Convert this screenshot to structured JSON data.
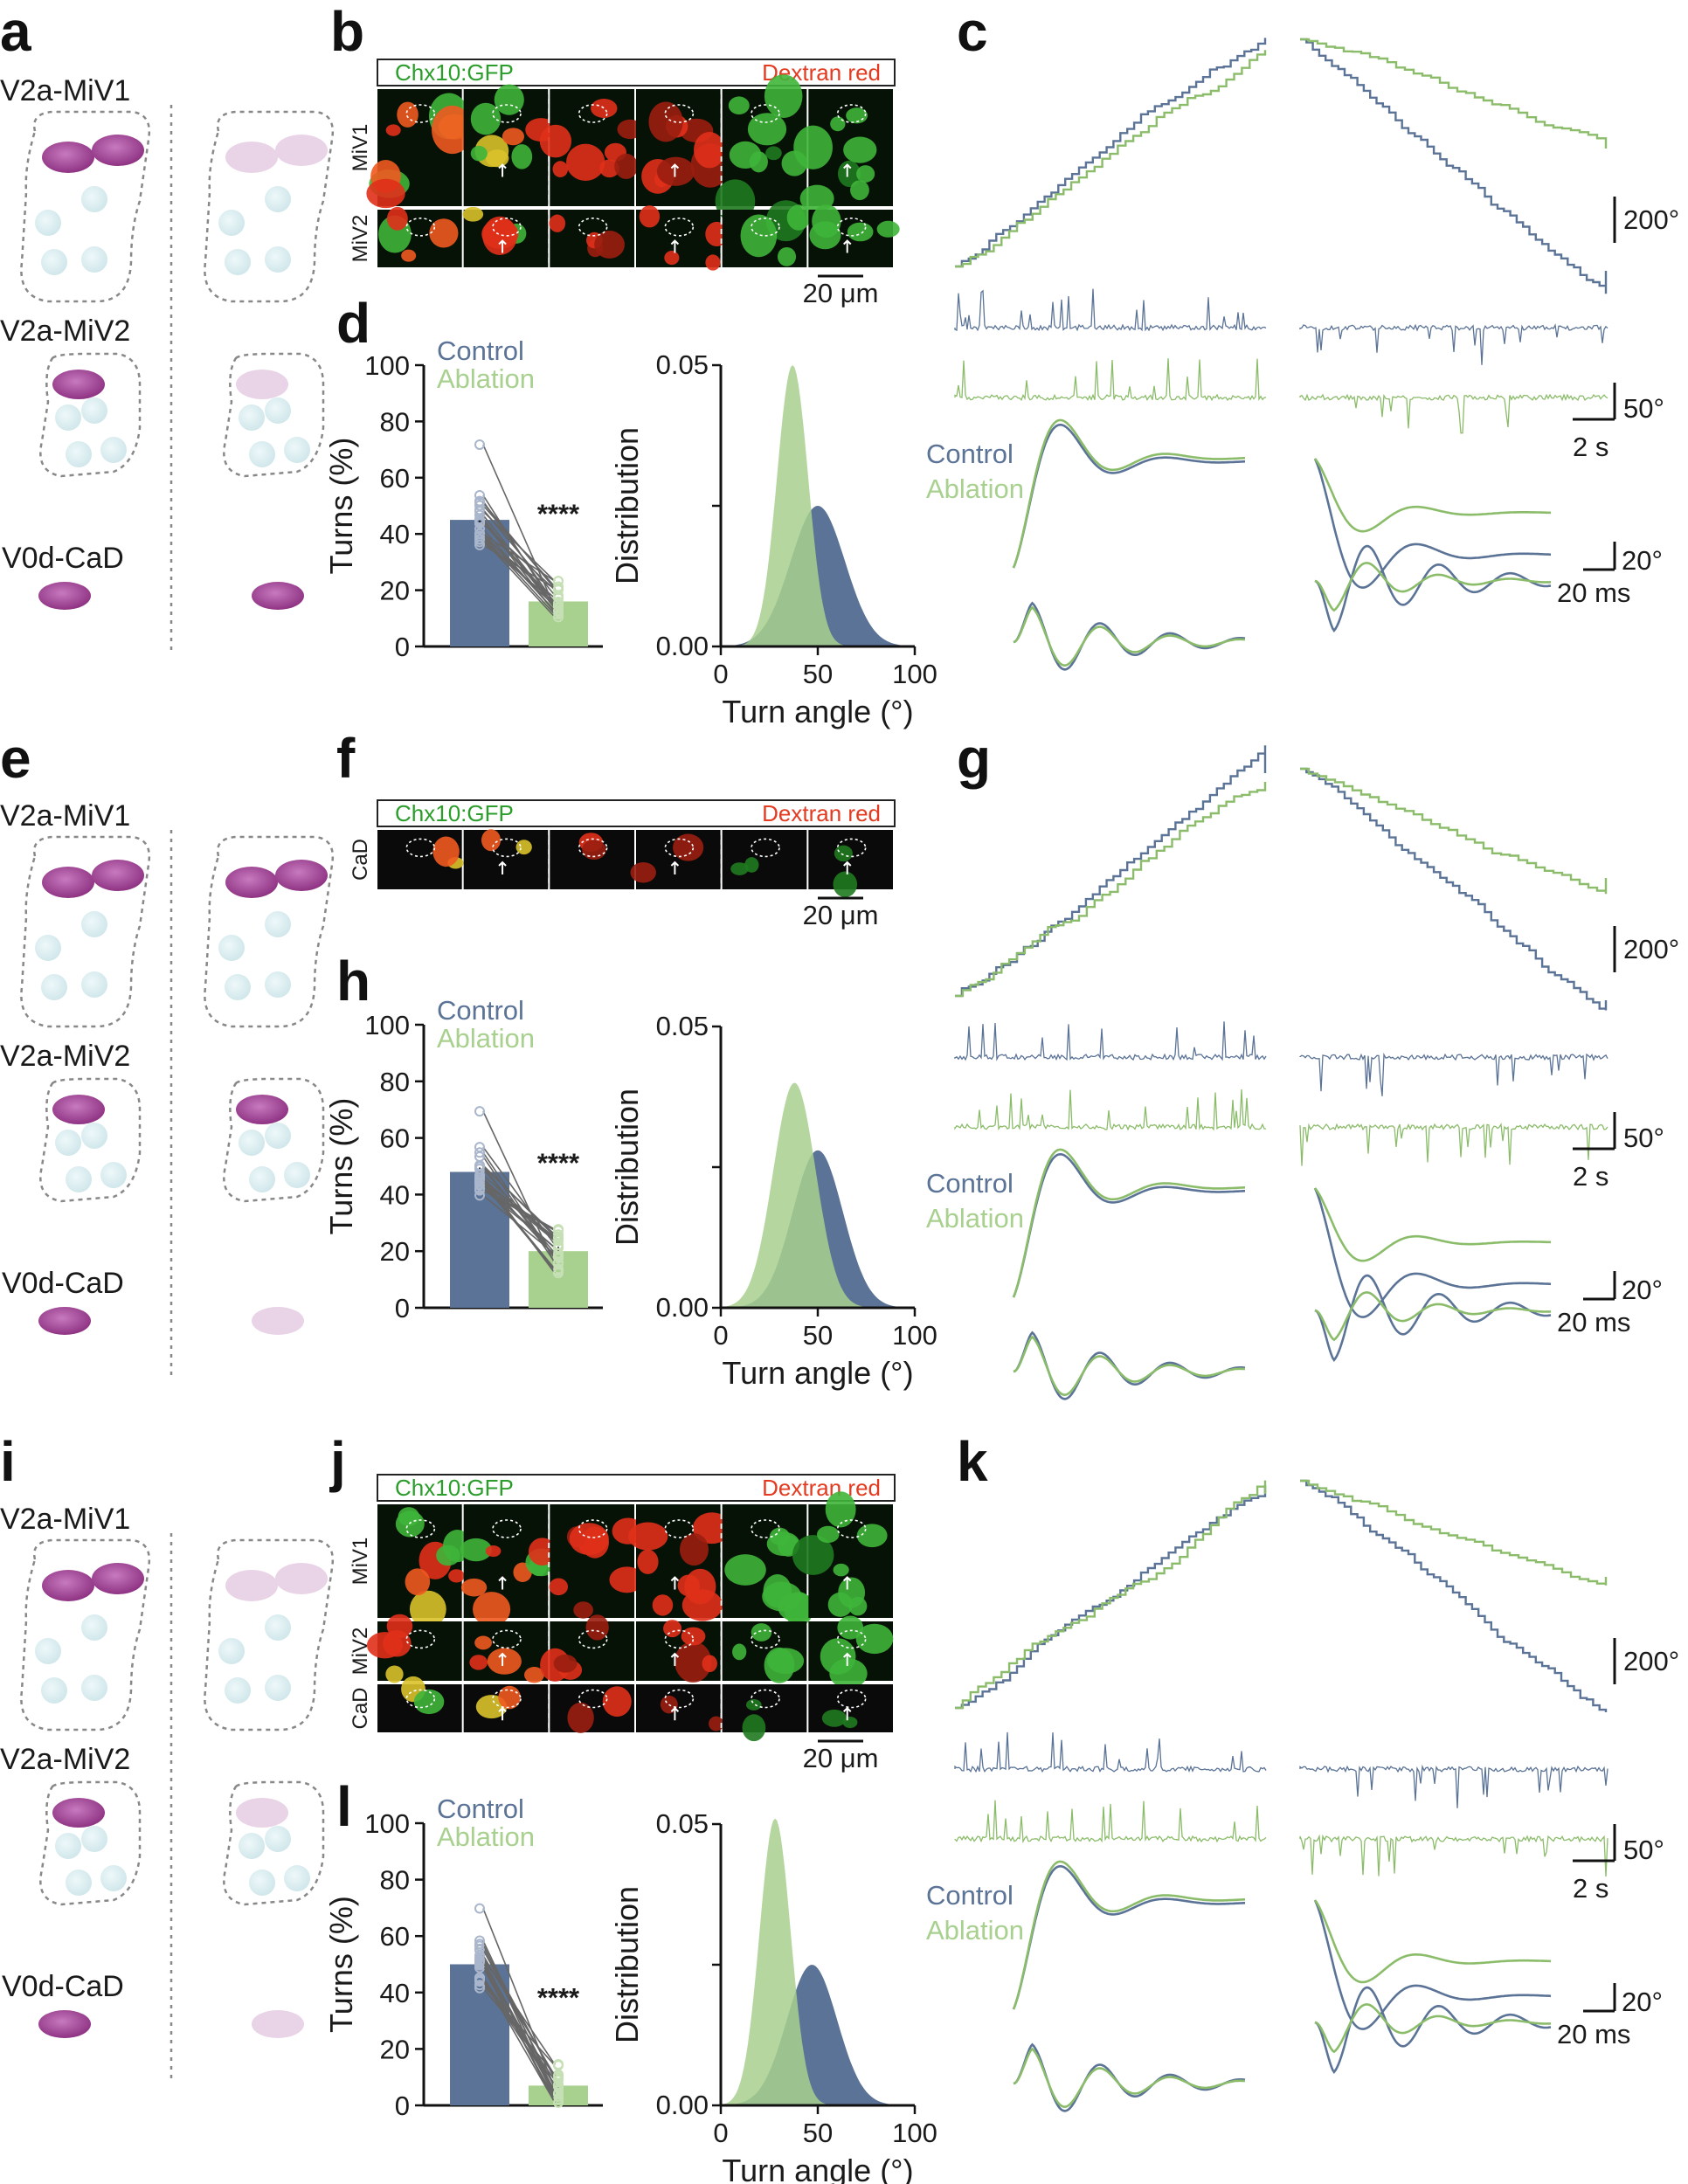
{
  "colors": {
    "control": "#5b7396",
    "ablation": "#8bbc6a",
    "ablation_light": "#a8d08e",
    "magenta": "#8a2d7e",
    "magenta_faint": "#e9d3e6",
    "cyan": "#cfe6ea",
    "gfp_green": "#2a9d2a",
    "dextran_red": "#e33a20"
  },
  "panel_letters": [
    "a",
    "b",
    "c",
    "d",
    "e",
    "f",
    "g",
    "h",
    "i",
    "j",
    "k",
    "l"
  ],
  "schematics": [
    {
      "letter": "a",
      "labels": [
        "V2a-MiV1",
        "V2a-MiV2",
        "V0d-CaD"
      ],
      "left": {
        "miv1": "full",
        "miv2": "full",
        "cad": "full"
      },
      "right": {
        "miv1": "faint",
        "miv2": "faint",
        "cad": "full"
      }
    },
    {
      "letter": "e",
      "labels": [
        "V2a-MiV1",
        "V2a-MiV2",
        "V0d-CaD"
      ],
      "left": {
        "miv1": "full",
        "miv2": "full",
        "cad": "full"
      },
      "right": {
        "miv1": "full",
        "miv2": "full",
        "cad": "faint"
      }
    },
    {
      "letter": "i",
      "labels": [
        "V2a-MiV1",
        "V2a-MiV2",
        "V0d-CaD"
      ],
      "left": {
        "miv1": "full",
        "miv2": "full",
        "cad": "full"
      },
      "right": {
        "miv1": "faint",
        "miv2": "faint",
        "cad": "faint"
      }
    }
  ],
  "micrographs": [
    {
      "letter": "b",
      "header_left": "Chx10:GFP",
      "header_right": "Dextran red",
      "rows": [
        "MiV1",
        "MiV2"
      ],
      "scale": "20 μm"
    },
    {
      "letter": "f",
      "header_left": "Chx10:GFP",
      "header_right": "Dextran red",
      "rows": [
        "CaD"
      ],
      "scale": "20 μm"
    },
    {
      "letter": "j",
      "header_left": "Chx10:GFP",
      "header_right": "Dextran red",
      "rows": [
        "MiV1",
        "MiV2",
        "CaD"
      ],
      "scale": "20 μm"
    }
  ],
  "traces": [
    {
      "letter": "c",
      "scale_angle": "200°",
      "scale_spike": "50°",
      "scale_time": "2 s",
      "scale_fine_angle": "20°",
      "scale_fine_time": "20 ms",
      "legend": [
        "Control",
        "Ablation"
      ]
    },
    {
      "letter": "g",
      "scale_angle": "200°",
      "scale_spike": "50°",
      "scale_time": "2 s",
      "scale_fine_angle": "20°",
      "scale_fine_time": "20 ms",
      "legend": [
        "Control",
        "Ablation"
      ]
    },
    {
      "letter": "k",
      "scale_angle": "200°",
      "scale_spike": "50°",
      "scale_time": "2 s",
      "scale_fine_angle": "20°",
      "scale_fine_time": "20 ms",
      "legend": [
        "Control",
        "Ablation"
      ]
    }
  ],
  "chart_data": [
    {
      "panel": "d",
      "type": "bar",
      "categories": [
        "Control",
        "Ablation"
      ],
      "values": [
        45,
        16
      ],
      "legend": [
        "Control",
        "Ablation"
      ],
      "ylabel": "Turns (%)",
      "ylim": [
        0,
        100
      ],
      "yticks": [
        0,
        20,
        40,
        60,
        80,
        100
      ],
      "significance": "****"
    },
    {
      "panel": "d-dist",
      "type": "area",
      "series": [
        {
          "name": "Control",
          "mean": 50,
          "sd": 14,
          "peak": 0.025
        },
        {
          "name": "Ablation",
          "mean": 37,
          "sd": 8,
          "peak": 0.05
        }
      ],
      "xlabel": "Turn angle (°)",
      "ylabel": "Distribution",
      "xlim": [
        0,
        100
      ],
      "xticks": [
        0,
        50,
        100
      ],
      "ylim": [
        0,
        0.05
      ],
      "yticks": [
        "0.00",
        "0.05"
      ]
    },
    {
      "panel": "h",
      "type": "bar",
      "categories": [
        "Control",
        "Ablation"
      ],
      "values": [
        48,
        20
      ],
      "legend": [
        "Control",
        "Ablation"
      ],
      "ylabel": "Turns (%)",
      "ylim": [
        0,
        100
      ],
      "yticks": [
        0,
        20,
        40,
        60,
        80,
        100
      ],
      "significance": "****"
    },
    {
      "panel": "h-dist",
      "type": "area",
      "series": [
        {
          "name": "Control",
          "mean": 50,
          "sd": 13,
          "peak": 0.028
        },
        {
          "name": "Ablation",
          "mean": 38,
          "sd": 11,
          "peak": 0.04
        }
      ],
      "xlabel": "Turn angle (°)",
      "ylabel": "Distribution",
      "xlim": [
        0,
        100
      ],
      "xticks": [
        0,
        50,
        100
      ],
      "ylim": [
        0,
        0.05
      ],
      "yticks": [
        "0.00",
        "0.05"
      ]
    },
    {
      "panel": "l",
      "type": "bar",
      "categories": [
        "Control",
        "Ablation"
      ],
      "values": [
        50,
        7
      ],
      "legend": [
        "Control",
        "Ablation"
      ],
      "ylabel": "Turns (%)",
      "ylim": [
        0,
        100
      ],
      "yticks": [
        0,
        20,
        40,
        60,
        80,
        100
      ],
      "significance": "****"
    },
    {
      "panel": "l-dist",
      "type": "area",
      "series": [
        {
          "name": "Control",
          "mean": 47,
          "sd": 13,
          "peak": 0.025
        },
        {
          "name": "Ablation",
          "mean": 28,
          "sd": 8,
          "peak": 0.051
        }
      ],
      "xlabel": "Turn angle (°)",
      "ylabel": "Distribution",
      "xlim": [
        0,
        100
      ],
      "xticks": [
        0,
        50,
        100
      ],
      "ylim": [
        0,
        0.05
      ],
      "yticks": [
        "0.00",
        "0.05"
      ]
    }
  ]
}
